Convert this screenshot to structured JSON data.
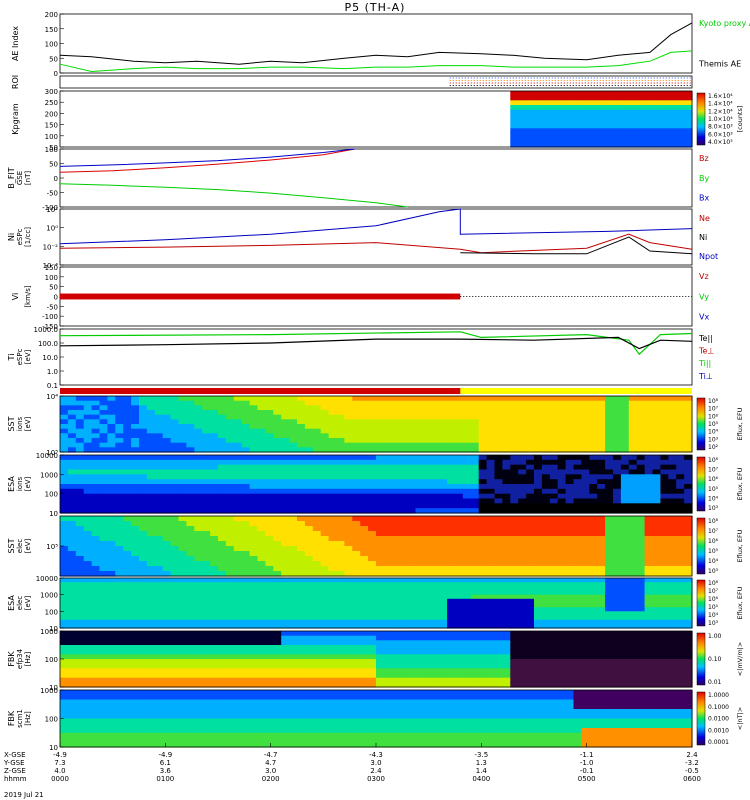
{
  "title": "P5 (TH-A)",
  "chart_data": {
    "type": "line",
    "title": "P5 (TH-A)",
    "date": "2019 Jul 21",
    "time_ticks": [
      "0000",
      "0100",
      "0200",
      "0300",
      "0400",
      "0500",
      "0600"
    ],
    "ephemeris": {
      "labels": [
        "X-GSE",
        "Y-GSE",
        "Z-GSE",
        "hhmm"
      ],
      "X": [
        "-4.9",
        "-4.9",
        "-4.7",
        "-4.3",
        "-3.5",
        "-1.1",
        "2.4"
      ],
      "Y": [
        "7.3",
        "6.1",
        "4.7",
        "3.0",
        "1.3",
        "-1.0",
        "-3.2"
      ],
      "Z": [
        "4.0",
        "3.6",
        "3.0",
        "2.4",
        "1.4",
        "-0.1",
        "-0.5"
      ]
    },
    "panels": [
      {
        "id": "ae",
        "ylabel": "AE Index",
        "ylim": [
          0,
          200
        ],
        "yticks": [
          "0",
          "50",
          "100",
          "150",
          "200"
        ],
        "legend": [
          "Kyoto proxy AE",
          "Themis AE"
        ],
        "series": [
          {
            "name": "Themis AE",
            "color": "#000000",
            "x": [
              0,
              0.3,
              0.7,
              1,
              1.3,
              1.7,
              2,
              2.3,
              2.7,
              3,
              3.3,
              3.6,
              4,
              4.3,
              4.6,
              5,
              5.3,
              5.6,
              5.8,
              6
            ],
            "values": [
              60,
              55,
              40,
              35,
              40,
              30,
              40,
              35,
              50,
              60,
              55,
              70,
              65,
              60,
              50,
              45,
              60,
              70,
              130,
              170
            ]
          },
          {
            "name": "Kyoto proxy AE",
            "color": "#00dd00",
            "x": [
              0,
              0.3,
              0.7,
              1,
              1.3,
              1.7,
              2,
              2.3,
              2.7,
              3,
              3.3,
              3.6,
              4,
              4.3,
              4.6,
              5,
              5.3,
              5.6,
              5.8,
              6
            ],
            "values": [
              30,
              5,
              15,
              20,
              15,
              15,
              20,
              20,
              15,
              20,
              20,
              25,
              25,
              20,
              20,
              20,
              25,
              40,
              70,
              75
            ]
          }
        ]
      },
      {
        "id": "roi",
        "ylabel": "ROI"
      },
      {
        "id": "kp",
        "ylabel": "Kpgram",
        "ylim": [
          0,
          300
        ],
        "yticks": [
          "50",
          "100",
          "150",
          "200",
          "250",
          "300"
        ],
        "colorbar": [
          "1.6×10⁴",
          "1.4×10⁴",
          "1.2×10⁴",
          "1.0×10⁴",
          "8.0×10³",
          "6.0×10³",
          "4.0×10³"
        ],
        "colorbar_unit": "[counts]"
      },
      {
        "id": "bfit",
        "ylabel": "B_FIT",
        "sublabel": "GSE",
        "unit": "[nT]",
        "ylim": [
          -100,
          100
        ],
        "yticks": [
          "-100",
          "-50",
          "0",
          "50",
          "100"
        ],
        "legend": [
          "Bz",
          "By",
          "Bx"
        ],
        "series": [
          {
            "name": "Bz",
            "color": "#dd0000",
            "x": [
              0,
              0.5,
              1,
              1.5,
              2,
              2.5,
              2.8
            ],
            "values": [
              20,
              25,
              35,
              48,
              62,
              80,
              100
            ]
          },
          {
            "name": "By",
            "color": "#0000cc",
            "x": [
              0,
              0.5,
              1,
              1.5,
              2,
              2.5,
              2.8
            ],
            "values": [
              40,
              45,
              52,
              60,
              72,
              88,
              100
            ]
          },
          {
            "name": "Bx",
            "color": "#00cc00",
            "x": [
              0,
              0.5,
              1,
              1.5,
              2,
              2.5,
              3,
              3.3
            ],
            "values": [
              -20,
              -25,
              -32,
              -40,
              -52,
              -68,
              -85,
              -100
            ]
          }
        ]
      },
      {
        "id": "ni",
        "ylabel": "Ni",
        "sublabel": "eSPc",
        "unit": "[1/cc]",
        "log": true,
        "yticks": [
          "10⁻⁴",
          "10⁻²",
          "10⁰",
          "10²"
        ],
        "legend": [
          "Ne",
          "Ni",
          "Npot"
        ]
      },
      {
        "id": "vi",
        "ylabel": "Vi",
        "unit": "[km/s]",
        "ylim": [
          -150,
          150
        ],
        "yticks": [
          "-150",
          "-100",
          "-50",
          "0",
          "50",
          "100",
          "150"
        ],
        "legend": [
          "Vz",
          "Vy",
          "Vx"
        ]
      },
      {
        "id": "ti",
        "ylabel": "Ti",
        "sublabel": "eSPc",
        "unit": "[eV]",
        "log": true,
        "yticks": [
          "0.1",
          "1.0",
          "10.0",
          "100.0",
          "1000.0"
        ],
        "legend": [
          "Te||",
          "Te⊥",
          "Ti||",
          "Ti⊥"
        ]
      },
      {
        "id": "sst_i",
        "ylabel": "SST",
        "sublabel": "ions",
        "unit": "[eV]",
        "log": true,
        "yticks": [
          "10⁵",
          "10⁴"
        ],
        "colorbar": [
          "10⁸",
          "10⁷",
          "10⁶",
          "10⁵",
          "10⁴",
          "10³",
          "10²"
        ],
        "colorbar_unit": "Eflux, EFU"
      },
      {
        "id": "esa_i",
        "ylabel": "ESA",
        "sublabel": "ions",
        "unit": "[eV]",
        "log": true,
        "yticks": [
          "10",
          "100",
          "1000",
          "10000"
        ],
        "colorbar": [
          "10⁸",
          "10⁷",
          "10⁶",
          "10⁵",
          "10⁴",
          "10³"
        ],
        "colorbar_unit": "Eflux, EFU"
      },
      {
        "id": "sst_e",
        "ylabel": "SST",
        "sublabel": "elec",
        "unit": "[eV]",
        "log": true,
        "yticks": [
          "10⁵"
        ],
        "colorbar": [
          "10⁸",
          "10⁷",
          "10⁶",
          "10⁵",
          "10⁴",
          "10³"
        ],
        "colorbar_unit": "Eflux, EFU"
      },
      {
        "id": "esa_e",
        "ylabel": "ESA",
        "sublabel": "elec",
        "unit": "[eV]",
        "log": true,
        "yticks": [
          "10",
          "100",
          "1000",
          "10000"
        ],
        "colorbar": [
          "10⁸",
          "10⁷",
          "10⁶",
          "10⁵",
          "10⁴",
          "10³"
        ],
        "colorbar_unit": "Eflux, EFU"
      },
      {
        "id": "fbk_e",
        "ylabel": "FBK",
        "sublabel": "efp34",
        "unit": "[Hz]",
        "log": true,
        "yticks": [
          "10",
          "100",
          "1000"
        ],
        "colorbar": [
          "1.00",
          "0.10",
          "0.01"
        ],
        "colorbar_unit": "<|mV/m|>"
      },
      {
        "id": "fbk_b",
        "ylabel": "FBK",
        "sublabel": "scm1",
        "unit": "[Hz]",
        "log": true,
        "yticks": [
          "10",
          "100",
          "1000"
        ],
        "colorbar": [
          "1.0000",
          "0.1000",
          "0.0100",
          "0.0010",
          "0.0001"
        ],
        "colorbar_unit": "<|nT|>"
      }
    ]
  }
}
